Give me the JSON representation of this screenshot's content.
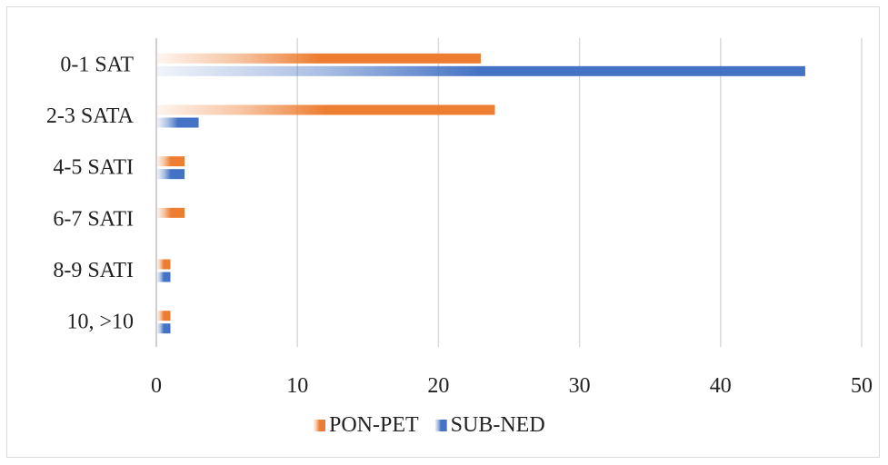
{
  "chart_data": {
    "type": "bar",
    "orientation": "horizontal",
    "categories": [
      "0-1 SAT",
      "2-3 SATA",
      "4-5 SATI",
      "6-7 SATI",
      "8-9 SATI",
      "10, >10"
    ],
    "series": [
      {
        "name": "PON-PET",
        "values": [
          23,
          24,
          2,
          2,
          1,
          1
        ],
        "color": "#ED7D31"
      },
      {
        "name": "SUB-NED",
        "values": [
          46,
          3,
          2,
          0,
          1,
          1
        ],
        "color": "#4472C4"
      }
    ],
    "xlim": [
      0,
      50
    ],
    "xticks": [
      "0",
      "10",
      "20",
      "30",
      "40",
      "50"
    ],
    "grid": true,
    "legend_position": "bottom",
    "bar_fill": "gradient"
  }
}
